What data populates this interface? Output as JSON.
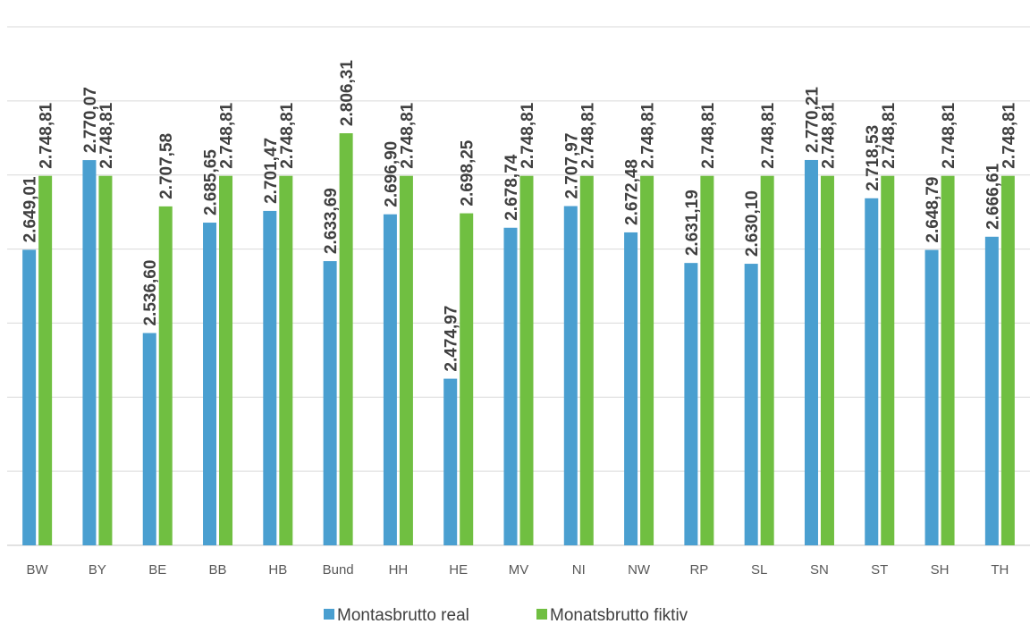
{
  "chart_data": {
    "type": "bar",
    "categories": [
      "BW",
      "BY",
      "BE",
      "BB",
      "HB",
      "Bund",
      "HH",
      "HE",
      "MV",
      "NI",
      "NW",
      "RP",
      "SL",
      "SN",
      "ST",
      "SH",
      "TH"
    ],
    "series": [
      {
        "name": "Montasbrutto real",
        "color": "#4a9fd0",
        "values": [
          2649.01,
          2770.07,
          2536.6,
          2685.65,
          2701.47,
          2633.69,
          2696.9,
          2474.97,
          2678.74,
          2707.97,
          2672.48,
          2631.19,
          2630.1,
          2770.21,
          2718.53,
          2648.79,
          2666.61
        ],
        "labels": [
          "2.649,01",
          "2.770,07",
          "2.536,60",
          "2.685,65",
          "2.701,47",
          "2.633,69",
          "2.696,90",
          "2.474,97",
          "2.678,74",
          "2.707,97",
          "2.672,48",
          "2.631,19",
          "2.630,10",
          "2.770,21",
          "2.718,53",
          "2.648,79",
          "2.666,61"
        ]
      },
      {
        "name": "Monatsbrutto fiktiv",
        "color": "#70bf41",
        "values": [
          2748.81,
          2748.81,
          2707.58,
          2748.81,
          2748.81,
          2806.31,
          2748.81,
          2698.25,
          2748.81,
          2748.81,
          2748.81,
          2748.81,
          2748.81,
          2748.81,
          2748.81,
          2748.81,
          2748.81
        ],
        "labels": [
          "2.748,81",
          "2.748,81",
          "2.707,58",
          "2.748,81",
          "2.748,81",
          "2.806,31",
          "2.748,81",
          "2.698,25",
          "2.748,81",
          "2.748,81",
          "2.748,81",
          "2.748,81",
          "2.748,81",
          "2.748,81",
          "2.748,81",
          "2.748,81",
          "2.748,81"
        ]
      }
    ],
    "ylim": [
      2250,
      2950
    ],
    "grid": true,
    "legend_position": "bottom"
  }
}
